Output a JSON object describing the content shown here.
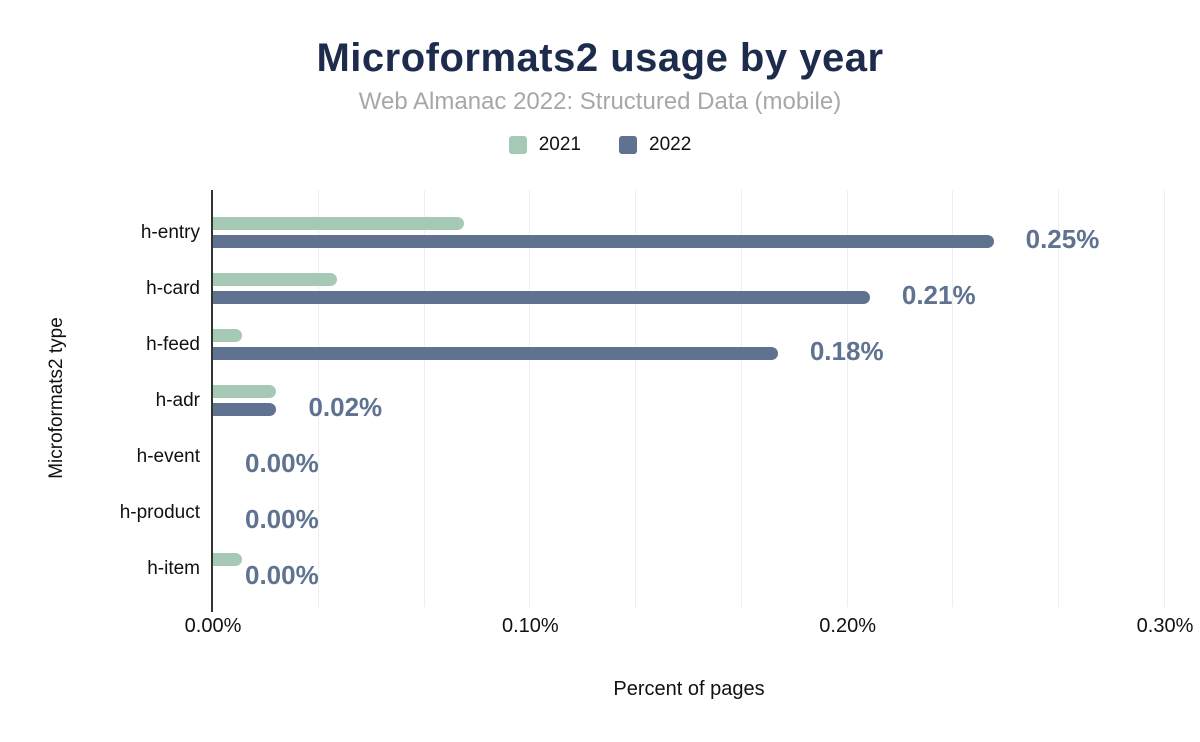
{
  "chart_data": {
    "type": "bar",
    "orientation": "horizontal",
    "title": "Microformats2 usage by year",
    "subtitle": "Web Almanac 2022: Structured Data (mobile)",
    "xlabel": "Percent of pages",
    "ylabel": "Microformats2 type",
    "categories": [
      "h-entry",
      "h-card",
      "h-feed",
      "h-adr",
      "h-event",
      "h-product",
      "h-item"
    ],
    "series": [
      {
        "name": "2021",
        "color": "#a6c9b5",
        "values": [
          0.079,
          0.039,
          0.009,
          0.02,
          0,
          0,
          0.009
        ]
      },
      {
        "name": "2022",
        "color": "#5f7290",
        "values": [
          0.246,
          0.207,
          0.178,
          0.02,
          0,
          0,
          0
        ],
        "labels": [
          "0.25%",
          "0.21%",
          "0.18%",
          "0.02%",
          "0.00%",
          "0.00%",
          "0.00%"
        ]
      }
    ],
    "xlim": [
      0,
      0.3
    ],
    "x_tick_labels": [
      "0.00%",
      "0.10%",
      "0.20%",
      "0.30%"
    ],
    "minor_gridline_intervals": 9,
    "grid": true,
    "legend_position": "top",
    "colors": {
      "title": "#1d2b4d",
      "subtitle": "#a7a7a7",
      "data_label": "#5f7290",
      "gridline": "#eeeeee",
      "axis_line": "#333333",
      "text": "#111111"
    }
  }
}
